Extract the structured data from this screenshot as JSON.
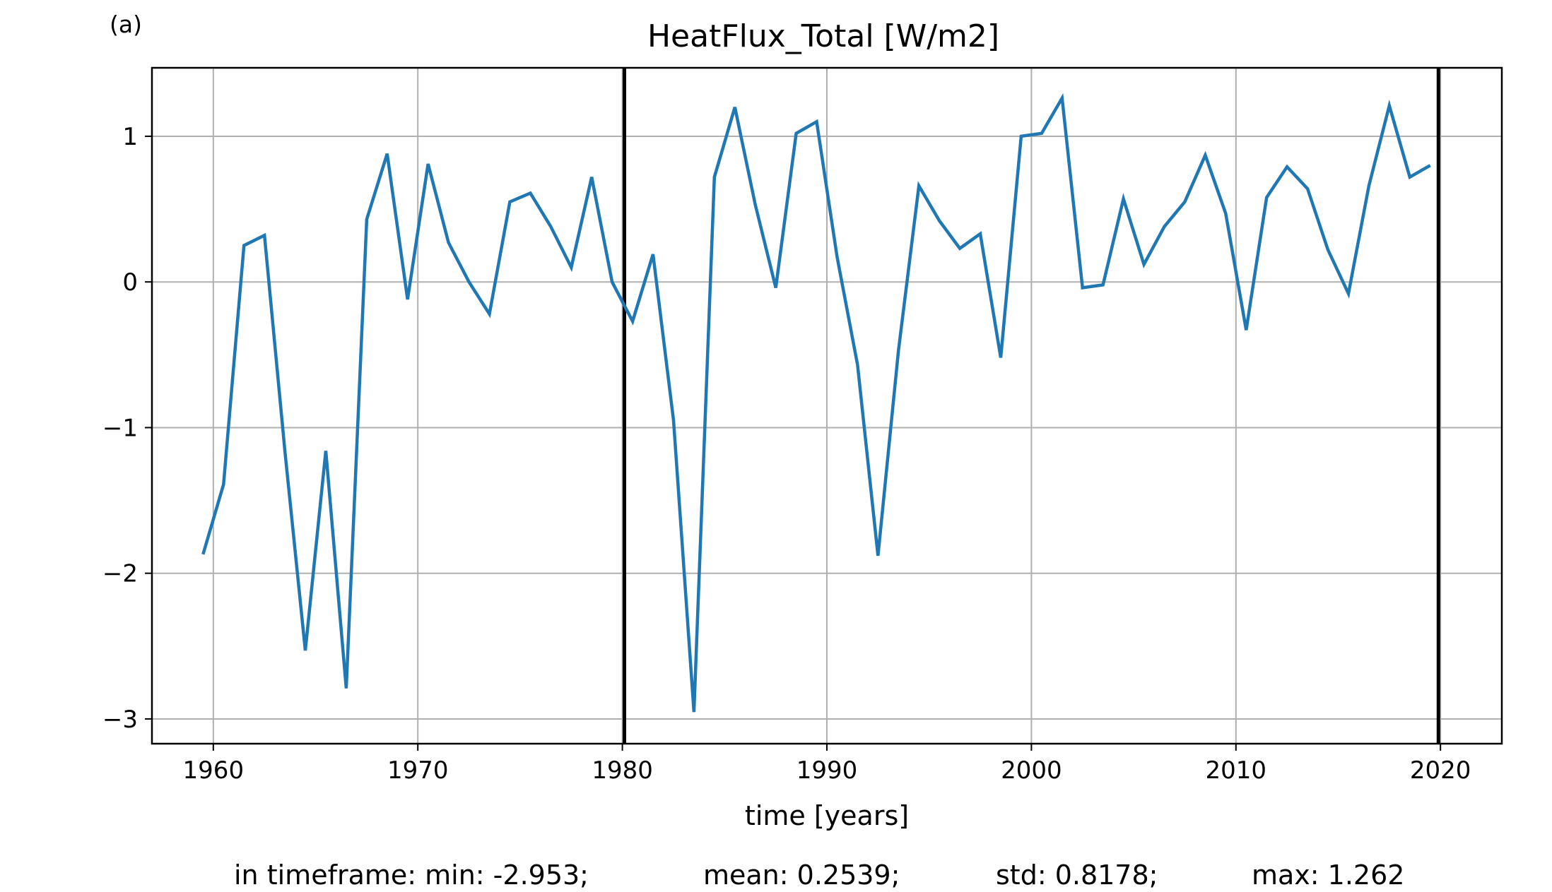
{
  "panel_label": "(a)",
  "stats": {
    "min": "in timeframe: min: -2.953;",
    "mean": "mean: 0.2539;",
    "std": "std: 0.8178;",
    "max": "max: 1.262"
  },
  "colors": {
    "series": "#1f77b4",
    "grid": "#b0b0b0",
    "marker_lines": "#000000"
  },
  "chart_data": {
    "type": "line",
    "title": "HeatFlux_Total [W/m2]",
    "xlabel": "time [years]",
    "ylabel": "",
    "xlim": [
      1957,
      2023
    ],
    "ylim": [
      -3.17,
      1.47
    ],
    "grid": true,
    "x_ticks": [
      1960,
      1970,
      1980,
      1990,
      2000,
      2010,
      2020
    ],
    "x_tick_labels": [
      "1960",
      "1970",
      "1980",
      "1990",
      "2000",
      "2010",
      "2020"
    ],
    "y_ticks": [
      -3,
      -2,
      -1,
      0,
      1
    ],
    "y_tick_labels": [
      "−3",
      "−2",
      "−1",
      "0",
      "1"
    ],
    "vertical_lines": [
      1980.1,
      2019.9
    ],
    "series": [
      {
        "x": [
          1959.5,
          1960.5,
          1961.5,
          1962.5,
          1963.5,
          1964.5,
          1965.5,
          1966.5,
          1967.5,
          1968.5,
          1969.5,
          1970.5,
          1971.5,
          1972.5,
          1973.5,
          1974.5,
          1975.5,
          1976.5,
          1977.5,
          1978.5,
          1979.5,
          1980.5,
          1981.5,
          1982.5,
          1983.5,
          1984.5,
          1985.5,
          1986.5,
          1987.5,
          1988.5,
          1989.5,
          1990.5,
          1991.5,
          1992.5,
          1993.5,
          1994.5,
          1995.5,
          1996.5,
          1997.5,
          1998.5,
          1999.5,
          2000.5,
          2001.5,
          2002.5,
          2003.5,
          2004.5,
          2005.5,
          2006.5,
          2007.5,
          2008.5,
          2009.5,
          2010.5,
          2011.5,
          2012.5,
          2013.5,
          2014.5,
          2015.5,
          2016.5,
          2017.5,
          2018.5,
          2019.5
        ],
        "values": [
          -1.87,
          -1.39,
          0.25,
          0.32,
          -1.16,
          -2.53,
          -1.16,
          -2.79,
          0.43,
          0.88,
          -0.12,
          0.81,
          0.27,
          0.0,
          -0.22,
          0.55,
          0.61,
          0.38,
          0.1,
          0.72,
          0.0,
          -0.27,
          0.19,
          -0.95,
          -2.953,
          0.72,
          1.2,
          0.53,
          -0.04,
          1.02,
          1.1,
          0.17,
          -0.57,
          -1.88,
          -0.47,
          0.66,
          0.42,
          0.23,
          0.33,
          -0.52,
          1.0,
          1.02,
          1.262,
          -0.04,
          -0.02,
          0.57,
          0.12,
          0.38,
          0.55,
          0.87,
          0.47,
          -0.33,
          0.58,
          0.79,
          0.64,
          0.22,
          -0.08,
          0.66,
          1.21,
          0.72,
          0.8
        ]
      }
    ]
  }
}
